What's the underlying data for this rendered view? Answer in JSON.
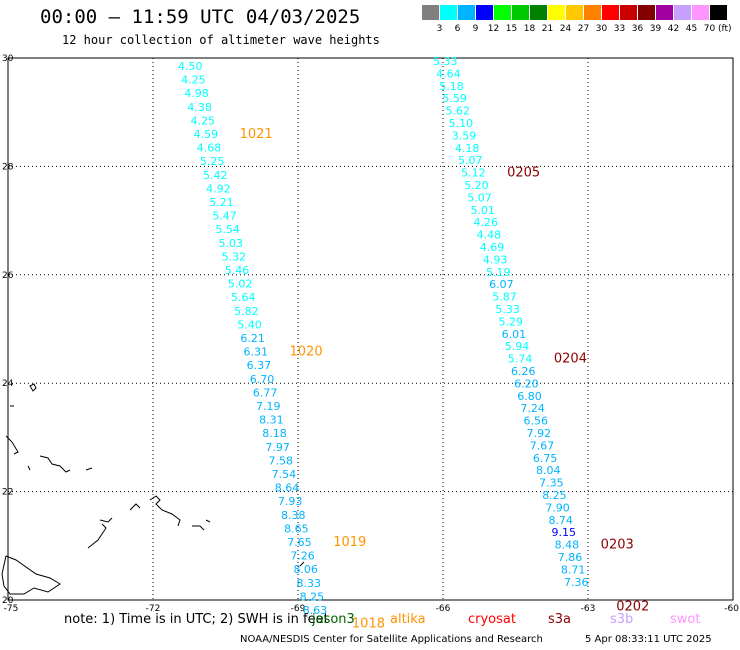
{
  "header": {
    "title": "00:00 – 11:59 UTC 04/03/2025",
    "subtitle": "12 hour collection of altimeter wave heights"
  },
  "legend": {
    "colors": [
      "#808080",
      "#00ffff",
      "#00b4ff",
      "#0000ff",
      "#00ff00",
      "#00c800",
      "#008200",
      "#ffff00",
      "#ffc800",
      "#ff8200",
      "#ff0000",
      "#c80000",
      "#820000",
      "#a000a0",
      "#c8a0ff",
      "#ff96ff",
      "#000000"
    ],
    "labels": [
      "3",
      "6",
      "9",
      "12",
      "15",
      "18",
      "21",
      "24",
      "27",
      "30",
      "33",
      "36",
      "39",
      "42",
      "45",
      "70"
    ],
    "unit": "(ft)"
  },
  "axes": {
    "lat_ticks": [
      "30",
      "28",
      "26",
      "24",
      "22",
      "20"
    ],
    "lon_ticks": [
      "-75",
      "-72",
      "-69",
      "-66",
      "-63",
      "-60"
    ]
  },
  "tracks": [
    {
      "time_labels": [
        {
          "text": "1021",
          "at": 5
        },
        {
          "text": "1020",
          "at": 21
        },
        {
          "text": "1019",
          "at": 35
        },
        {
          "text": "1018",
          "at": 41
        }
      ],
      "time_color": "#ff9400",
      "values": [
        "4.50",
        "4.25",
        "4.98",
        "4.38",
        "4.25",
        "4.59",
        "4.68",
        "5.25",
        "5.42",
        "4.92",
        "5.21",
        "5.47",
        "5.54",
        "5.03",
        "5.32",
        "5.46",
        "5.02",
        "5.64",
        "5.82",
        "5.40",
        "6.21",
        "6.31",
        "6.37",
        "6.70",
        "6.77",
        "7.19",
        "8.31",
        "8.18",
        "7.97",
        "7.58",
        "7.54",
        "8.64",
        "7.93",
        "8.38",
        "8.65",
        "7.65",
        "7.26",
        "8.06",
        "8.33",
        "8.25",
        "8.63"
      ]
    },
    {
      "time_labels": [
        {
          "text": "0205",
          "at": 9
        },
        {
          "text": "0204",
          "at": 24
        },
        {
          "text": "0203",
          "at": 39
        },
        {
          "text": "0202",
          "at": 44
        }
      ],
      "time_color": "#8b0000",
      "values": [
        "5.33",
        "4.64",
        "5.18",
        "5.59",
        "5.62",
        "5.10",
        "3.59",
        "4.18",
        "5.07",
        "5.12",
        "5.20",
        "5.07",
        "5.01",
        "4.26",
        "4.48",
        "4.69",
        "4.93",
        "5.19",
        "6.07",
        "5.87",
        "5.33",
        "5.29",
        "6.01",
        "5.94",
        "5.74",
        "6.26",
        "6.20",
        "6.80",
        "7.24",
        "6.56",
        "7.92",
        "7.67",
        "6.75",
        "8.04",
        "7.35",
        "8.25",
        "7.90",
        "8.74",
        "9.15",
        "8.48",
        "7.86",
        "8.71",
        "7.36"
      ]
    }
  ],
  "footer": {
    "note": "note:  1) Time is in UTC;  2) SWH is in feet",
    "satellites": [
      {
        "name": "jason3",
        "color": "#006400"
      },
      {
        "name": "altika",
        "color": "#ff9400"
      },
      {
        "name": "cryosat",
        "color": "#ff0000"
      },
      {
        "name": "s3a",
        "color": "#8b0000"
      },
      {
        "name": "s3b",
        "color": "#c8a0ff"
      },
      {
        "name": "swot",
        "color": "#ff96ff"
      }
    ],
    "credit": "NOAA/NESDIS Center for Satellite Applications and Research",
    "timestamp": "5 Apr 08:33:11 UTC 2025"
  }
}
